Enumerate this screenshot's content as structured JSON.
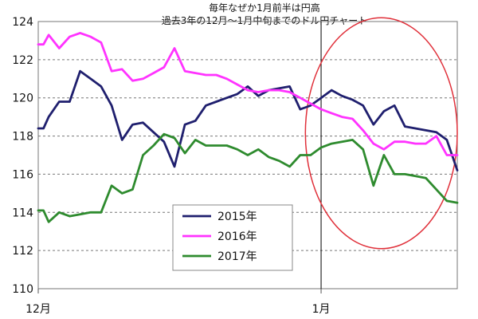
{
  "chart_data": {
    "type": "line",
    "title": "毎年なぜか1月前半は円高",
    "subtitle": "過去3年の12月～1月中旬までのドル円チャート",
    "xlabel": "",
    "ylabel": "",
    "ylim": [
      110,
      124
    ],
    "yticks": [
      110,
      112,
      114,
      116,
      118,
      120,
      122,
      124
    ],
    "grid": true,
    "grid_style": "dashed",
    "x_tick_labels": [
      {
        "label": "12月",
        "x": 0
      },
      {
        "label": "1月",
        "x": 27
      }
    ],
    "xlim": [
      0,
      40
    ],
    "x": [
      0,
      0.5,
      1,
      2,
      3,
      4,
      5,
      6,
      7,
      8,
      9,
      10,
      11,
      12,
      13,
      14,
      15,
      16,
      17,
      18,
      19,
      20,
      21,
      22,
      23,
      24,
      25,
      26,
      27,
      28,
      29,
      30,
      31,
      32,
      33,
      34,
      35,
      36,
      37,
      38,
      39,
      40
    ],
    "series": [
      {
        "name": "2015年",
        "color": "#1f1f6e",
        "values": [
          118.4,
          118.4,
          119.0,
          119.8,
          119.8,
          121.4,
          121.0,
          120.6,
          119.6,
          117.8,
          118.6,
          118.7,
          118.2,
          117.7,
          116.4,
          118.6,
          118.8,
          119.6,
          119.8,
          120.0,
          120.2,
          120.6,
          120.1,
          120.4,
          120.5,
          120.6,
          119.4,
          119.6,
          120.0,
          120.4,
          120.1,
          119.9,
          119.6,
          118.6,
          119.3,
          119.6,
          118.5,
          118.4,
          118.3,
          118.2,
          117.8,
          116.2
        ]
      },
      {
        "name": "2016年",
        "color": "#ff33ff",
        "values": [
          122.8,
          122.8,
          123.3,
          122.6,
          123.2,
          123.4,
          123.2,
          122.9,
          121.4,
          121.5,
          120.9,
          121.0,
          121.3,
          121.6,
          122.6,
          121.4,
          121.3,
          121.2,
          121.2,
          121.0,
          120.7,
          120.4,
          120.3,
          120.4,
          120.4,
          120.3,
          120.0,
          119.7,
          119.4,
          119.2,
          119.0,
          118.9,
          118.3,
          117.6,
          117.3,
          117.7,
          117.7,
          117.6,
          117.6,
          118.0,
          117.0,
          117.0
        ]
      },
      {
        "name": "2017年",
        "color": "#2e8b2e",
        "values": [
          114.1,
          114.1,
          113.5,
          114.0,
          113.8,
          113.9,
          114.0,
          114.0,
          115.4,
          115.0,
          115.2,
          117.0,
          117.5,
          118.1,
          117.9,
          117.1,
          117.8,
          117.5,
          117.5,
          117.5,
          117.3,
          117.0,
          117.3,
          116.9,
          116.7,
          116.4,
          117.0,
          117.0,
          117.4,
          117.6,
          117.7,
          117.8,
          117.3,
          115.4,
          117.0,
          116.0,
          116.0,
          115.9,
          115.8,
          115.2,
          114.6,
          114.5
        ]
      }
    ],
    "legend": {
      "position": "bottom-center",
      "entries": [
        "2015年",
        "2016年",
        "2017年"
      ]
    },
    "annotations": [
      {
        "type": "vertical-line",
        "x": 27,
        "color": "#000000"
      },
      {
        "type": "ellipse",
        "color": "#e0303a",
        "x_range": [
          25.5,
          40
        ],
        "y_range": [
          112.1,
          124.2
        ]
      }
    ]
  }
}
